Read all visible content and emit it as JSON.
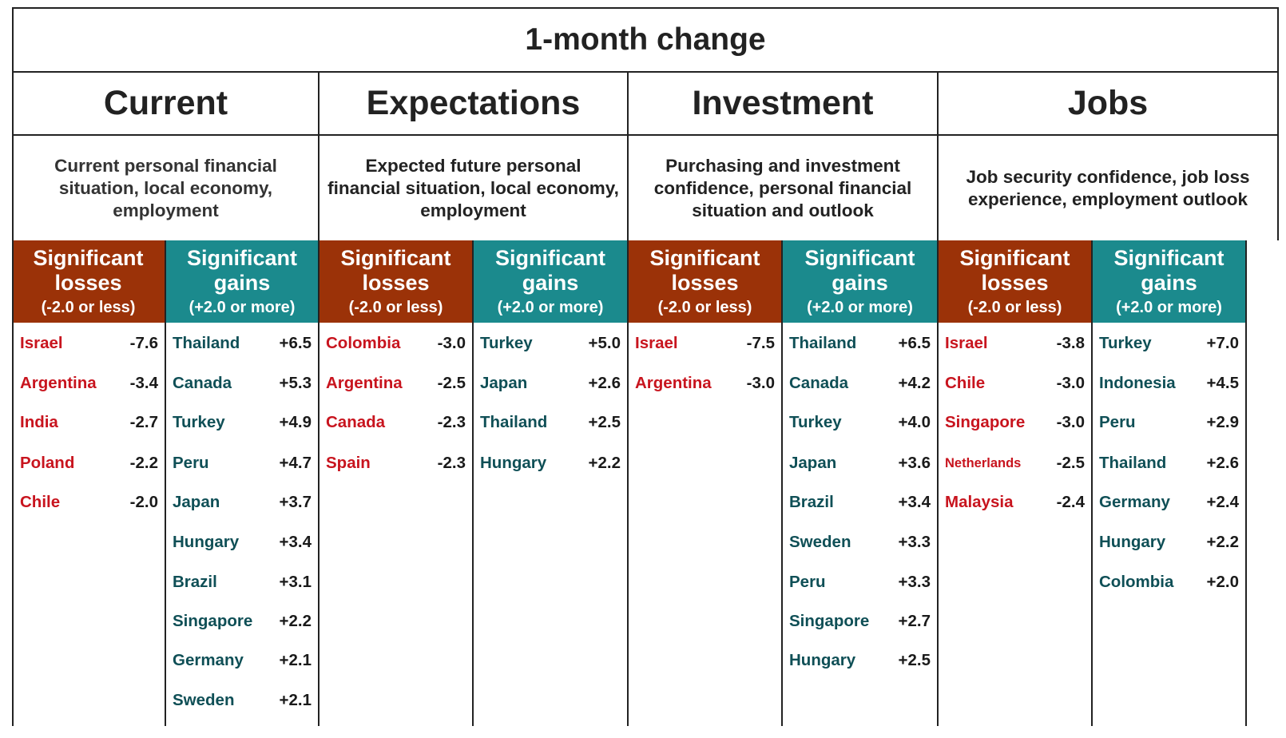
{
  "title": "1-month change",
  "sections": [
    {
      "name": "Current",
      "description": "Current personal financial situation, local economy, employment",
      "losses_header": {
        "line1": "Significant",
        "line2": "losses",
        "line3": "(-2.0 or less)"
      },
      "gains_header": {
        "line1": "Significant",
        "line2": "gains",
        "line3": "(+2.0 or more)"
      },
      "losses": [
        {
          "country": "Israel",
          "value": "-7.6"
        },
        {
          "country": "Argentina",
          "value": "-3.4"
        },
        {
          "country": "India",
          "value": "-2.7"
        },
        {
          "country": "Poland",
          "value": "-2.2"
        },
        {
          "country": "Chile",
          "value": "-2.0"
        }
      ],
      "gains": [
        {
          "country": "Thailand",
          "value": "+6.5"
        },
        {
          "country": "Canada",
          "value": "+5.3"
        },
        {
          "country": "Turkey",
          "value": "+4.9"
        },
        {
          "country": "Peru",
          "value": "+4.7"
        },
        {
          "country": "Japan",
          "value": "+3.7"
        },
        {
          "country": "Hungary",
          "value": "+3.4"
        },
        {
          "country": "Brazil",
          "value": "+3.1"
        },
        {
          "country": "Singapore",
          "value": "+2.2"
        },
        {
          "country": "Germany",
          "value": "+2.1"
        },
        {
          "country": "Sweden",
          "value": "+2.1"
        }
      ]
    },
    {
      "name": "Expectations",
      "description": "Expected future personal financial situation, local economy, employment",
      "losses_header": {
        "line1": "Significant",
        "line2": "losses",
        "line3": "(-2.0 or less)"
      },
      "gains_header": {
        "line1": "Significant",
        "line2": "gains",
        "line3": "(+2.0 or more)"
      },
      "losses": [
        {
          "country": "Colombia",
          "value": "-3.0"
        },
        {
          "country": "Argentina",
          "value": "-2.5"
        },
        {
          "country": "Canada",
          "value": "-2.3"
        },
        {
          "country": "Spain",
          "value": "-2.3"
        }
      ],
      "gains": [
        {
          "country": "Turkey",
          "value": "+5.0"
        },
        {
          "country": "Japan",
          "value": "+2.6"
        },
        {
          "country": "Thailand",
          "value": "+2.5"
        },
        {
          "country": "Hungary",
          "value": "+2.2"
        }
      ]
    },
    {
      "name": "Investment",
      "description": "Purchasing and investment confidence, personal financial situation and outlook",
      "losses_header": {
        "line1": "Significant",
        "line2": "losses",
        "line3": "(-2.0 or less)"
      },
      "gains_header": {
        "line1": "Significant",
        "line2": "gains",
        "line3": "(+2.0 or more)"
      },
      "losses": [
        {
          "country": "Israel",
          "value": "-7.5"
        },
        {
          "country": "Argentina",
          "value": "-3.0"
        }
      ],
      "gains": [
        {
          "country": "Thailand",
          "value": "+6.5"
        },
        {
          "country": "Canada",
          "value": "+4.2"
        },
        {
          "country": "Turkey",
          "value": "+4.0"
        },
        {
          "country": "Japan",
          "value": "+3.6"
        },
        {
          "country": "Brazil",
          "value": "+3.4"
        },
        {
          "country": "Sweden",
          "value": "+3.3"
        },
        {
          "country": "Peru",
          "value": "+3.3"
        },
        {
          "country": "Singapore",
          "value": "+2.7"
        },
        {
          "country": "Hungary",
          "value": "+2.5"
        }
      ]
    },
    {
      "name": "Jobs",
      "description": "Job security confidence, job loss experience, employment outlook",
      "losses_header": {
        "line1": "Significant",
        "line2": "losses",
        "line3": "(-2.0 or less)"
      },
      "gains_header": {
        "line1": "Significant",
        "line2": "gains",
        "line3": "(+2.0 or more)"
      },
      "losses": [
        {
          "country": "Israel",
          "value": "-3.8"
        },
        {
          "country": "Chile",
          "value": "-3.0"
        },
        {
          "country": "Singapore",
          "value": "-3.0"
        },
        {
          "country": "Netherlands",
          "value": "-2.5"
        },
        {
          "country": "Malaysia",
          "value": "-2.4"
        }
      ],
      "gains": [
        {
          "country": "Turkey",
          "value": "+7.0"
        },
        {
          "country": "Indonesia",
          "value": "+4.5"
        },
        {
          "country": "Peru",
          "value": "+2.9"
        },
        {
          "country": "Thailand",
          "value": "+2.6"
        },
        {
          "country": "Germany",
          "value": "+2.4"
        },
        {
          "country": "Hungary",
          "value": "+2.2"
        },
        {
          "country": "Colombia",
          "value": "+2.0"
        }
      ]
    }
  ],
  "colors": {
    "losses_header": "#9b3208",
    "gains_header": "#1b8a8d",
    "loss_country": "#c8141e",
    "gain_country": "#0f4f56"
  }
}
